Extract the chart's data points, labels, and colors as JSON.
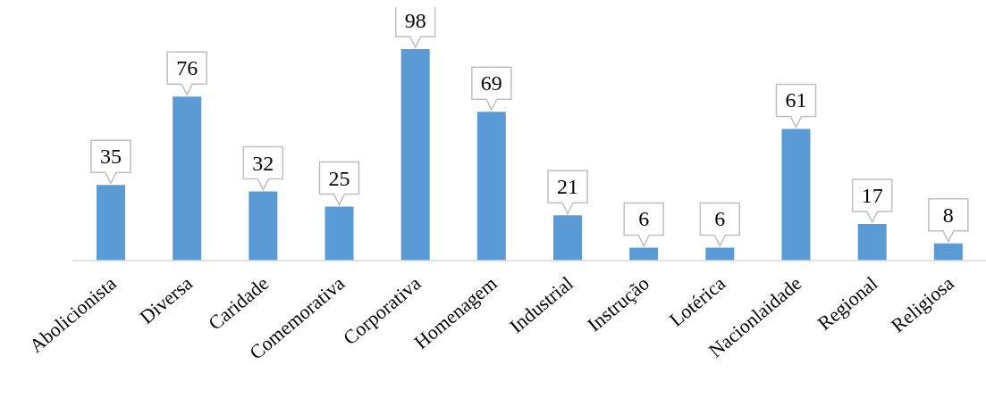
{
  "chart_data": {
    "type": "bar",
    "categories": [
      "Abolicionista",
      "Diversa",
      "Caridade",
      "Comemorativa",
      "Corporativa",
      "Homenagem",
      "Industrial",
      "Instrução",
      "Lotérica",
      "Nacionlaidade",
      "Regional",
      "Religiosa"
    ],
    "values": [
      35,
      76,
      32,
      25,
      98,
      69,
      21,
      6,
      6,
      61,
      17,
      8
    ],
    "color": "#5b9bd5",
    "data_labels": true,
    "grid": false,
    "legend": false
  }
}
